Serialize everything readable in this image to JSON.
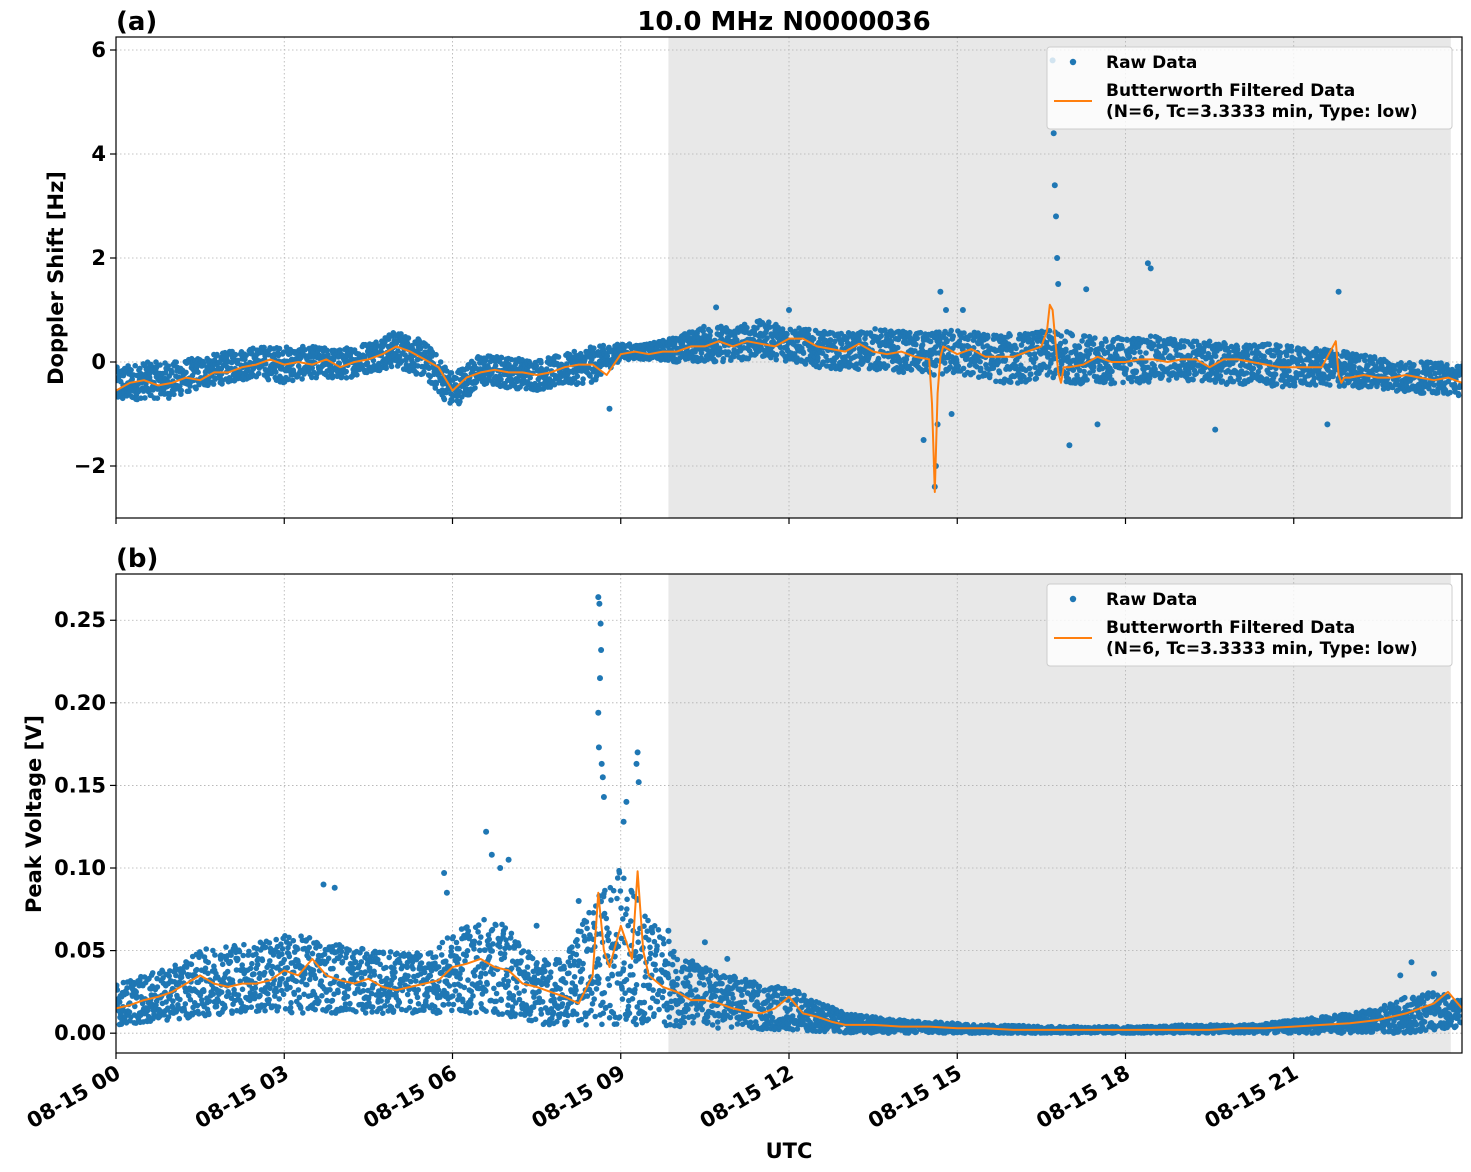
{
  "figure": {
    "title": "10.0 MHz N0000036",
    "xlabel": "UTC",
    "x_tick_labels": [
      "08-15 00",
      "08-15 03",
      "08-15 06",
      "08-15 09",
      "08-15 12",
      "08-15 15",
      "08-15 18",
      "08-15 21"
    ]
  },
  "colors": {
    "raw": "#1f77b4",
    "filtered": "#ff7f0e",
    "shade": "#e8e8e8",
    "grid": "#b0b0b0"
  },
  "legend": {
    "raw_label": "Raw Data",
    "filtered_label_line1": "Butterworth Filtered Data",
    "filtered_label_line2": "(N=6, Tc=3.3333 min, Type: low)"
  },
  "chart_data": [
    {
      "type": "scatter",
      "panel_label": "(a)",
      "ylabel": "Doppler Shift [Hz]",
      "xlim_hours": [
        0,
        24
      ],
      "ylim": [
        -3,
        6.25
      ],
      "y_ticks": [
        -2,
        0,
        2,
        4,
        6
      ],
      "y_tick_labels": [
        "−2",
        "0",
        "2",
        "4",
        "6"
      ],
      "grid": true,
      "legend_position": "top-right",
      "night_shading_hours": [
        9.85,
        23.8
      ],
      "series": [
        {
          "name": "Raw Data",
          "kind": "points",
          "band_envelope_hours": [
            0,
            0.5,
            1,
            1.5,
            2,
            2.5,
            3,
            3.5,
            4,
            4.5,
            5,
            5.5,
            6,
            6.5,
            7,
            7.5,
            8,
            8.5,
            9,
            9.5,
            10,
            10.5,
            11,
            11.5,
            12,
            12.5,
            13,
            13.5,
            14,
            14.5,
            15,
            15.5,
            16,
            16.5,
            17,
            17.5,
            18,
            18.5,
            19,
            19.5,
            20,
            20.5,
            21,
            21.5,
            22,
            22.5,
            23,
            23.5,
            24
          ],
          "band_center": [
            -0.45,
            -0.35,
            -0.35,
            -0.2,
            -0.1,
            0.0,
            -0.05,
            0.0,
            -0.05,
            0.1,
            0.25,
            0.05,
            -0.55,
            -0.15,
            -0.2,
            -0.25,
            -0.15,
            -0.05,
            0.2,
            0.2,
            0.25,
            0.35,
            0.35,
            0.45,
            0.35,
            0.25,
            0.2,
            0.25,
            0.2,
            0.15,
            0.2,
            0.1,
            0.05,
            0.15,
            0.1,
            0.0,
            0.05,
            0.05,
            0.05,
            0.0,
            -0.05,
            -0.05,
            -0.1,
            -0.1,
            -0.15,
            -0.2,
            -0.3,
            -0.3,
            -0.35
          ],
          "band_halfwidth": [
            0.35,
            0.35,
            0.35,
            0.3,
            0.3,
            0.3,
            0.35,
            0.3,
            0.3,
            0.3,
            0.35,
            0.35,
            0.35,
            0.3,
            0.3,
            0.3,
            0.3,
            0.35,
            0.15,
            0.15,
            0.25,
            0.35,
            0.35,
            0.35,
            0.35,
            0.35,
            0.35,
            0.4,
            0.4,
            0.4,
            0.45,
            0.45,
            0.5,
            0.45,
            0.5,
            0.45,
            0.45,
            0.45,
            0.4,
            0.4,
            0.4,
            0.4,
            0.4,
            0.35,
            0.35,
            0.3,
            0.3,
            0.3,
            0.3
          ],
          "outliers": [
            [
              14.6,
              -2.4
            ],
            [
              14.62,
              -2.0
            ],
            [
              14.65,
              -1.2
            ],
            [
              14.7,
              1.35
            ],
            [
              14.8,
              1.0
            ],
            [
              14.4,
              -1.5
            ],
            [
              14.9,
              -1.0
            ],
            [
              15.1,
              1.0
            ],
            [
              16.7,
              5.8
            ],
            [
              16.72,
              4.4
            ],
            [
              16.74,
              3.4
            ],
            [
              16.76,
              2.8
            ],
            [
              16.78,
              2.0
            ],
            [
              16.8,
              1.5
            ],
            [
              17.0,
              -1.6
            ],
            [
              17.3,
              1.4
            ],
            [
              18.4,
              1.9
            ],
            [
              18.45,
              1.8
            ],
            [
              17.5,
              -1.2
            ],
            [
              19.6,
              -1.3
            ],
            [
              21.8,
              1.35
            ],
            [
              21.6,
              -1.2
            ],
            [
              8.8,
              -0.9
            ],
            [
              10.7,
              1.05
            ],
            [
              12.0,
              1.0
            ]
          ]
        },
        {
          "name": "Butterworth Filtered Data\n(N=6, Tc=3.3333 min, Type: low)",
          "kind": "line",
          "x_hours": [
            0,
            0.25,
            0.5,
            0.75,
            1,
            1.25,
            1.5,
            1.75,
            2,
            2.25,
            2.5,
            2.75,
            3,
            3.25,
            3.5,
            3.75,
            4,
            4.25,
            4.5,
            4.75,
            5,
            5.25,
            5.5,
            5.75,
            6,
            6.25,
            6.5,
            6.75,
            7,
            7.25,
            7.5,
            7.75,
            8,
            8.25,
            8.5,
            8.75,
            9,
            9.25,
            9.5,
            9.75,
            10,
            10.25,
            10.5,
            10.75,
            11,
            11.25,
            11.5,
            11.75,
            12,
            12.25,
            12.5,
            12.75,
            13,
            13.25,
            13.5,
            13.75,
            14,
            14.25,
            14.5,
            14.55,
            14.6,
            14.65,
            14.7,
            14.75,
            15,
            15.25,
            15.5,
            15.75,
            16,
            16.25,
            16.5,
            16.6,
            16.65,
            16.7,
            16.75,
            16.8,
            16.85,
            16.9,
            17.0,
            17.25,
            17.5,
            17.75,
            18,
            18.25,
            18.5,
            18.75,
            19,
            19.25,
            19.5,
            19.75,
            20,
            20.25,
            20.5,
            20.75,
            21,
            21.25,
            21.5,
            21.75,
            21.8,
            21.85,
            21.9,
            22,
            22.25,
            22.5,
            22.75,
            23,
            23.25,
            23.5,
            23.75,
            24
          ],
          "y": [
            -0.55,
            -0.4,
            -0.35,
            -0.45,
            -0.4,
            -0.3,
            -0.35,
            -0.2,
            -0.2,
            -0.1,
            -0.05,
            0.05,
            -0.05,
            0.0,
            -0.05,
            0.05,
            -0.1,
            0.0,
            0.05,
            0.15,
            0.3,
            0.2,
            0.05,
            -0.1,
            -0.55,
            -0.3,
            -0.2,
            -0.15,
            -0.2,
            -0.2,
            -0.25,
            -0.2,
            -0.1,
            -0.05,
            -0.05,
            -0.25,
            0.15,
            0.2,
            0.15,
            0.2,
            0.2,
            0.3,
            0.3,
            0.4,
            0.3,
            0.4,
            0.35,
            0.3,
            0.45,
            0.45,
            0.3,
            0.25,
            0.2,
            0.35,
            0.2,
            0.15,
            0.2,
            0.1,
            0.05,
            -0.8,
            -2.5,
            -0.6,
            0.1,
            0.3,
            0.15,
            0.25,
            0.1,
            0.1,
            0.1,
            0.2,
            0.3,
            0.6,
            1.1,
            1.0,
            0.4,
            -0.2,
            -0.4,
            -0.1,
            -0.1,
            -0.05,
            0.1,
            0.0,
            0.0,
            0.05,
            0.05,
            0.0,
            0.05,
            0.05,
            -0.1,
            0.05,
            0.05,
            0.0,
            -0.05,
            -0.1,
            -0.1,
            -0.1,
            -0.1,
            0.4,
            -0.25,
            -0.4,
            -0.3,
            -0.3,
            -0.25,
            -0.3,
            -0.3,
            -0.25,
            -0.3,
            -0.35,
            -0.3,
            -0.4
          ]
        }
      ]
    },
    {
      "type": "scatter",
      "panel_label": "(b)",
      "ylabel": "Peak Voltage [V]",
      "xlim_hours": [
        0,
        24
      ],
      "ylim": [
        -0.012,
        0.278
      ],
      "y_ticks": [
        0.0,
        0.05,
        0.1,
        0.15,
        0.2,
        0.25
      ],
      "y_tick_labels": [
        "0.00",
        "0.05",
        "0.10",
        "0.15",
        "0.20",
        "0.25"
      ],
      "grid": true,
      "legend_position": "top-right",
      "night_shading_hours": [
        9.85,
        23.8
      ],
      "series": [
        {
          "name": "Raw Data",
          "kind": "points",
          "band_envelope_hours": [
            0,
            0.5,
            1,
            1.5,
            2,
            2.5,
            3,
            3.5,
            4,
            4.5,
            5,
            5.5,
            6,
            6.5,
            7,
            7.5,
            8,
            8.5,
            9,
            9.5,
            10,
            10.5,
            11,
            11.5,
            12,
            12.5,
            13,
            13.5,
            14,
            14.5,
            15,
            15.5,
            16,
            16.5,
            17,
            17.5,
            18,
            18.5,
            19,
            19.5,
            20,
            20.5,
            21,
            21.5,
            22,
            22.5,
            23,
            23.5,
            24
          ],
          "band_low": [
            0.005,
            0.006,
            0.008,
            0.01,
            0.012,
            0.012,
            0.012,
            0.012,
            0.012,
            0.012,
            0.012,
            0.012,
            0.012,
            0.012,
            0.01,
            0.005,
            0.005,
            0.005,
            0.005,
            0.005,
            0.004,
            0.003,
            0.003,
            0.002,
            0.002,
            0.001,
            0.0,
            0.0,
            0.0,
            0.0,
            0.0,
            0.0,
            0.0,
            0.0,
            0.0,
            0.0,
            0.0,
            0.0,
            0.0,
            0.0,
            0.0,
            0.0,
            0.0,
            0.0,
            0.0,
            0.0,
            0.0,
            0.002,
            0.003
          ],
          "band_high": [
            0.03,
            0.035,
            0.04,
            0.05,
            0.055,
            0.055,
            0.06,
            0.058,
            0.055,
            0.05,
            0.05,
            0.048,
            0.06,
            0.07,
            0.065,
            0.045,
            0.045,
            0.08,
            0.1,
            0.07,
            0.05,
            0.04,
            0.035,
            0.03,
            0.028,
            0.02,
            0.012,
            0.01,
            0.008,
            0.007,
            0.006,
            0.005,
            0.005,
            0.004,
            0.004,
            0.004,
            0.004,
            0.004,
            0.005,
            0.005,
            0.005,
            0.006,
            0.008,
            0.01,
            0.012,
            0.015,
            0.022,
            0.025,
            0.02
          ],
          "outliers": [
            [
              8.6,
              0.264
            ],
            [
              8.62,
              0.26
            ],
            [
              8.64,
              0.248
            ],
            [
              8.65,
              0.232
            ],
            [
              8.63,
              0.215
            ],
            [
              8.6,
              0.194
            ],
            [
              8.61,
              0.173
            ],
            [
              8.66,
              0.163
            ],
            [
              8.68,
              0.155
            ],
            [
              8.7,
              0.143
            ],
            [
              9.3,
              0.17
            ],
            [
              9.28,
              0.163
            ],
            [
              9.1,
              0.14
            ],
            [
              9.32,
              0.152
            ],
            [
              9.05,
              0.128
            ],
            [
              6.6,
              0.122
            ],
            [
              6.7,
              0.108
            ],
            [
              7.0,
              0.105
            ],
            [
              6.85,
              0.1
            ],
            [
              5.85,
              0.097
            ],
            [
              5.9,
              0.085
            ],
            [
              3.7,
              0.09
            ],
            [
              3.9,
              0.088
            ],
            [
              8.25,
              0.08
            ],
            [
              7.5,
              0.065
            ],
            [
              9.85,
              0.062
            ],
            [
              10.5,
              0.055
            ],
            [
              10.9,
              0.045
            ],
            [
              12.1,
              0.025
            ],
            [
              23.1,
              0.043
            ],
            [
              22.9,
              0.035
            ],
            [
              23.5,
              0.036
            ]
          ]
        },
        {
          "name": "Butterworth Filtered Data\n(N=6, Tc=3.3333 min, Type: low)",
          "kind": "line",
          "x_hours": [
            0,
            0.25,
            0.5,
            0.75,
            1,
            1.25,
            1.5,
            1.75,
            2,
            2.25,
            2.5,
            2.75,
            3,
            3.25,
            3.5,
            3.75,
            4,
            4.25,
            4.5,
            4.75,
            5,
            5.25,
            5.5,
            5.75,
            6,
            6.25,
            6.5,
            6.75,
            7,
            7.25,
            7.5,
            7.75,
            8,
            8.25,
            8.5,
            8.6,
            8.7,
            8.8,
            9,
            9.1,
            9.2,
            9.3,
            9.4,
            9.5,
            9.75,
            10,
            10.25,
            10.5,
            10.75,
            11,
            11.25,
            11.5,
            11.75,
            12,
            12.25,
            12.5,
            12.75,
            13,
            13.5,
            14,
            14.5,
            15,
            15.5,
            16,
            16.5,
            17,
            17.5,
            18,
            18.5,
            19,
            19.5,
            20,
            20.5,
            21,
            21.5,
            22,
            22.25,
            22.5,
            22.75,
            23,
            23.25,
            23.5,
            23.75,
            24
          ],
          "y": [
            0.015,
            0.017,
            0.02,
            0.022,
            0.025,
            0.03,
            0.035,
            0.03,
            0.028,
            0.03,
            0.03,
            0.032,
            0.038,
            0.035,
            0.045,
            0.035,
            0.032,
            0.03,
            0.033,
            0.028,
            0.026,
            0.028,
            0.03,
            0.032,
            0.04,
            0.042,
            0.045,
            0.04,
            0.038,
            0.03,
            0.028,
            0.025,
            0.022,
            0.018,
            0.035,
            0.085,
            0.05,
            0.04,
            0.065,
            0.055,
            0.045,
            0.098,
            0.05,
            0.035,
            0.028,
            0.025,
            0.02,
            0.02,
            0.018,
            0.015,
            0.013,
            0.012,
            0.015,
            0.022,
            0.012,
            0.01,
            0.007,
            0.005,
            0.005,
            0.004,
            0.004,
            0.003,
            0.003,
            0.002,
            0.002,
            0.002,
            0.002,
            0.002,
            0.002,
            0.002,
            0.002,
            0.003,
            0.003,
            0.004,
            0.005,
            0.006,
            0.007,
            0.008,
            0.01,
            0.012,
            0.015,
            0.018,
            0.025,
            0.015
          ]
        }
      ]
    }
  ]
}
